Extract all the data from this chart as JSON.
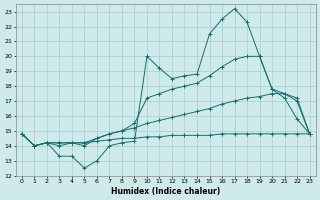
{
  "background_color": "#ceeaea",
  "grid_color": "#aacccc",
  "line_color": "#1a6b6b",
  "xlabel": "Humidex (Indice chaleur)",
  "xlim": [
    -0.5,
    23.5
  ],
  "ylim": [
    12,
    23.5
  ],
  "xticks": [
    0,
    1,
    2,
    3,
    4,
    5,
    6,
    7,
    8,
    9,
    10,
    11,
    12,
    13,
    14,
    15,
    16,
    17,
    18,
    19,
    20,
    21,
    22,
    23
  ],
  "yticks": [
    12,
    13,
    14,
    15,
    16,
    17,
    18,
    19,
    20,
    21,
    22,
    23
  ],
  "series1_x": [
    0,
    1,
    2,
    3,
    4,
    5,
    6,
    7,
    8,
    9,
    10,
    11,
    12,
    13,
    14,
    15,
    16,
    17,
    18,
    19,
    20,
    21,
    22,
    23
  ],
  "series1_y": [
    14.8,
    14.0,
    14.2,
    13.3,
    13.3,
    12.5,
    13.0,
    14.0,
    14.2,
    14.3,
    20.0,
    19.2,
    18.5,
    18.7,
    18.8,
    21.5,
    22.5,
    23.2,
    22.3,
    20.0,
    17.8,
    17.2,
    15.8,
    14.8
  ],
  "series2_x": [
    0,
    1,
    2,
    3,
    4,
    5,
    6,
    7,
    8,
    9,
    10,
    11,
    12,
    13,
    14,
    15,
    16,
    17,
    18,
    19,
    20,
    21,
    22,
    23
  ],
  "series2_y": [
    14.8,
    14.0,
    14.2,
    14.0,
    14.2,
    14.0,
    14.5,
    14.8,
    15.0,
    15.5,
    17.2,
    17.5,
    17.8,
    18.0,
    18.2,
    18.7,
    19.3,
    19.8,
    20.0,
    20.0,
    17.8,
    17.5,
    17.0,
    14.8
  ],
  "series3_x": [
    0,
    1,
    2,
    3,
    4,
    5,
    6,
    7,
    8,
    9,
    10,
    11,
    12,
    13,
    14,
    15,
    16,
    17,
    18,
    19,
    20,
    21,
    22,
    23
  ],
  "series3_y": [
    14.8,
    14.0,
    14.2,
    14.2,
    14.2,
    14.2,
    14.5,
    14.8,
    15.0,
    15.2,
    15.5,
    15.7,
    15.9,
    16.1,
    16.3,
    16.5,
    16.8,
    17.0,
    17.2,
    17.3,
    17.5,
    17.5,
    17.2,
    14.8
  ],
  "series4_x": [
    0,
    1,
    2,
    3,
    4,
    5,
    6,
    7,
    8,
    9,
    10,
    11,
    12,
    13,
    14,
    15,
    16,
    17,
    18,
    19,
    20,
    21,
    22,
    23
  ],
  "series4_y": [
    14.8,
    14.0,
    14.2,
    14.2,
    14.2,
    14.2,
    14.3,
    14.4,
    14.5,
    14.5,
    14.6,
    14.6,
    14.7,
    14.7,
    14.7,
    14.7,
    14.8,
    14.8,
    14.8,
    14.8,
    14.8,
    14.8,
    14.8,
    14.8
  ]
}
